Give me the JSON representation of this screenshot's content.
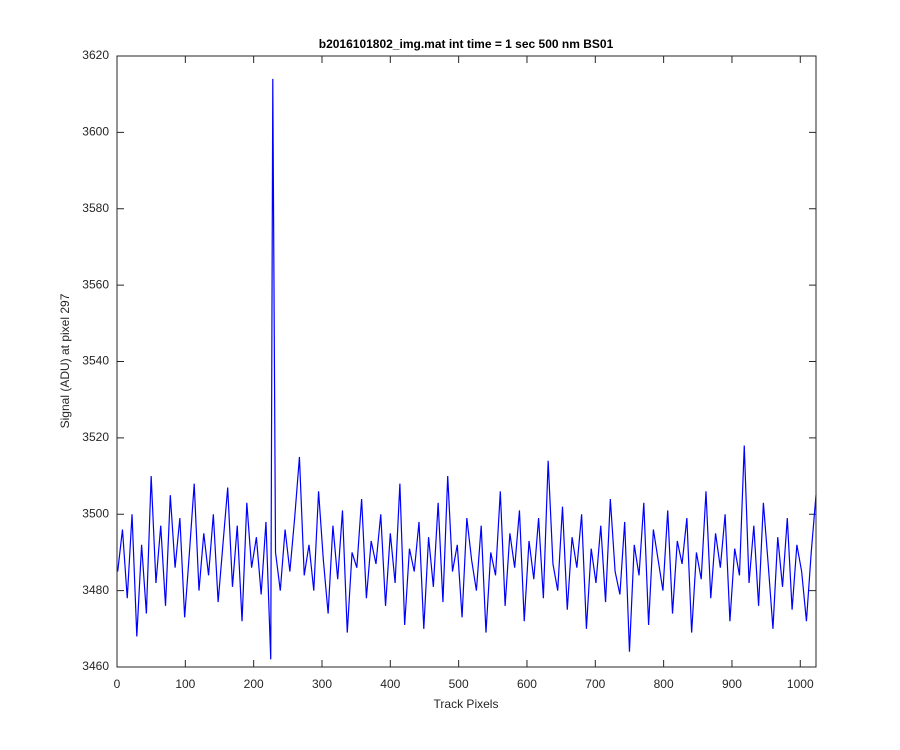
{
  "chart_data": {
    "type": "line",
    "title": "b2016101802_img.mat int time = 1 sec  500 nm BS01",
    "xlabel": "Track Pixels",
    "ylabel": "Signal (ADU) at pixel 297",
    "x": [
      1,
      8,
      15,
      22,
      29,
      36,
      43,
      50,
      57,
      64,
      71,
      78,
      85,
      92,
      99,
      106,
      113,
      120,
      127,
      134,
      141,
      148,
      155,
      162,
      169,
      176,
      183,
      190,
      197,
      204,
      211,
      218,
      225,
      228,
      232,
      239,
      246,
      253,
      260,
      267,
      274,
      281,
      288,
      295,
      302,
      309,
      316,
      323,
      330,
      337,
      344,
      351,
      358,
      365,
      372,
      379,
      386,
      393,
      400,
      407,
      414,
      421,
      428,
      435,
      442,
      449,
      456,
      463,
      470,
      477,
      484,
      491,
      498,
      505,
      512,
      519,
      526,
      533,
      540,
      547,
      554,
      561,
      568,
      575,
      582,
      589,
      596,
      603,
      610,
      617,
      624,
      631,
      638,
      645,
      652,
      659,
      666,
      673,
      680,
      687,
      694,
      701,
      708,
      715,
      722,
      729,
      736,
      743,
      750,
      757,
      764,
      771,
      778,
      785,
      792,
      799,
      806,
      813,
      820,
      827,
      834,
      841,
      848,
      855,
      862,
      869,
      876,
      883,
      890,
      897,
      904,
      911,
      918,
      925,
      932,
      939,
      946,
      953,
      960,
      967,
      974,
      981,
      988,
      995,
      1002,
      1009,
      1016,
      1023
    ],
    "series": [
      {
        "color": "#0000ff",
        "values": [
          3485,
          3496,
          3478,
          3500,
          3468,
          3492,
          3474,
          3510,
          3482,
          3497,
          3476,
          3505,
          3486,
          3499,
          3473,
          3490,
          3508,
          3480,
          3495,
          3484,
          3500,
          3477,
          3492,
          3507,
          3481,
          3497,
          3472,
          3503,
          3486,
          3494,
          3479,
          3498,
          3462,
          3614,
          3490,
          3480,
          3496,
          3485,
          3499,
          3515,
          3484,
          3492,
          3480,
          3506,
          3488,
          3474,
          3497,
          3483,
          3501,
          3469,
          3490,
          3486,
          3504,
          3478,
          3493,
          3487,
          3500,
          3476,
          3495,
          3482,
          3508,
          3471,
          3491,
          3485,
          3498,
          3470,
          3494,
          3481,
          3503,
          3477,
          3510,
          3485,
          3492,
          3473,
          3499,
          3488,
          3480,
          3497,
          3469,
          3490,
          3484,
          3506,
          3476,
          3495,
          3486,
          3501,
          3472,
          3493,
          3483,
          3499,
          3478,
          3514,
          3487,
          3480,
          3502,
          3475,
          3494,
          3486,
          3500,
          3470,
          3491,
          3482,
          3497,
          3477,
          3504,
          3485,
          3479,
          3498,
          3464,
          3492,
          3484,
          3503,
          3471,
          3496,
          3488,
          3480,
          3501,
          3474,
          3493,
          3487,
          3499,
          3469,
          3490,
          3483,
          3506,
          3478,
          3495,
          3486,
          3500,
          3472,
          3491,
          3484,
          3518,
          3482,
          3497,
          3476,
          3503,
          3487,
          3470,
          3494,
          3481,
          3499,
          3475,
          3492,
          3485,
          3472,
          3490,
          3505
        ]
      }
    ],
    "xlim": [
      0,
      1023
    ],
    "xticks": [
      0,
      100,
      200,
      300,
      400,
      500,
      600,
      700,
      800,
      900,
      1000
    ],
    "ylim": [
      3460,
      3620
    ],
    "yticks": [
      3460,
      3480,
      3500,
      3520,
      3540,
      3560,
      3580,
      3600,
      3620
    ],
    "grid": false
  }
}
